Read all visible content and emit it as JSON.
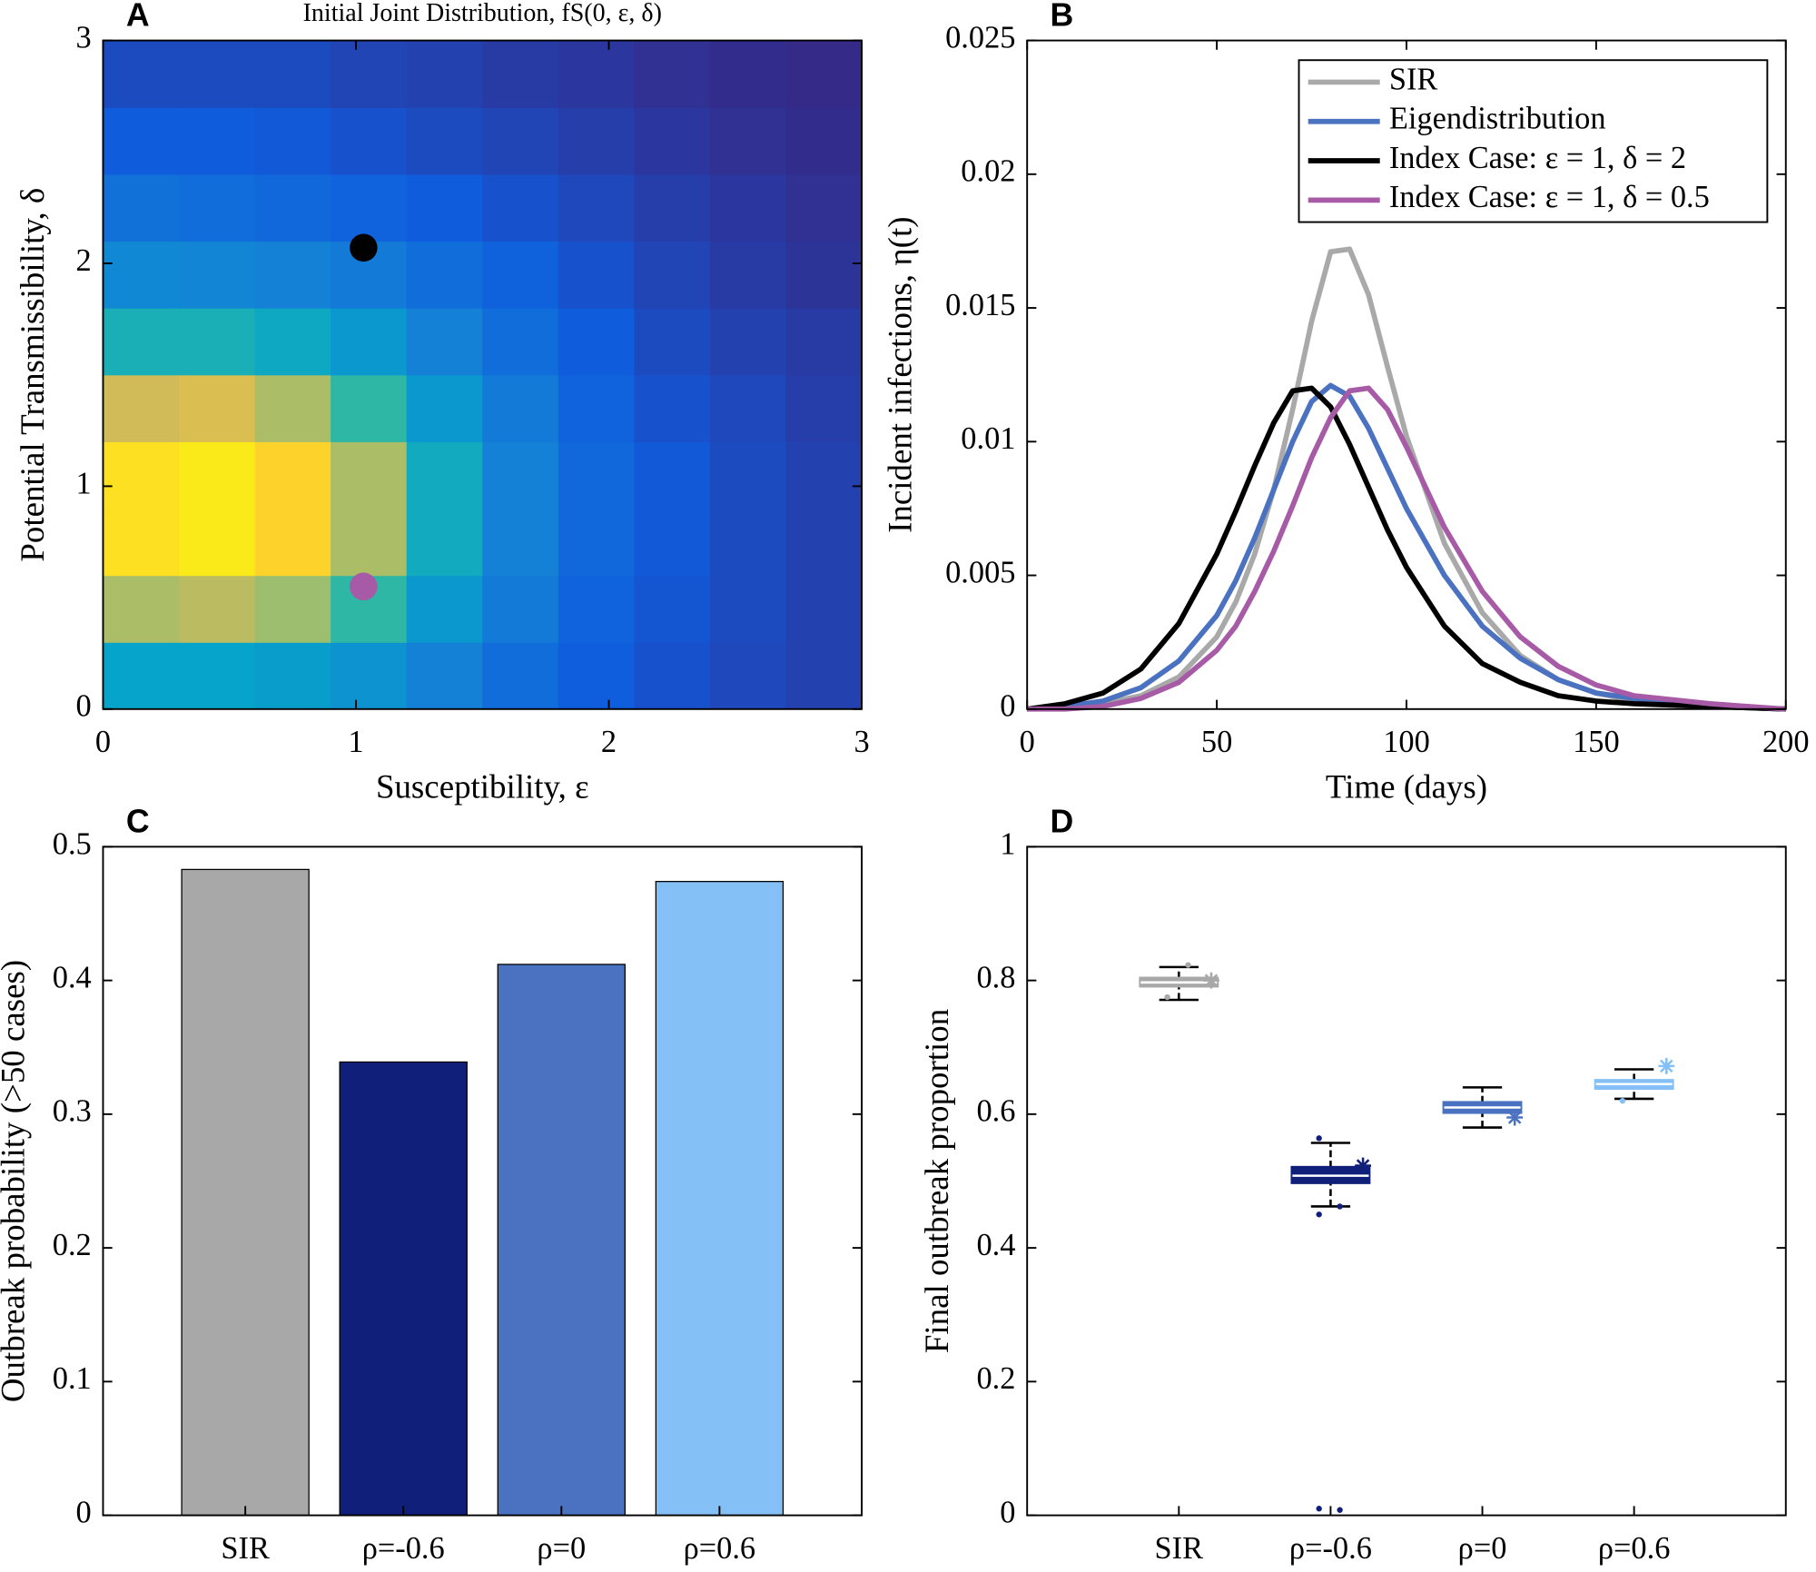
{
  "chart_data": [
    {
      "type": "heatmap",
      "panel_label": "A",
      "title": "Initial Joint Distribution, fS(0, ε, δ)",
      "xlabel": "Susceptibility, ε",
      "ylabel": "Potential Transmissibility, δ",
      "xlim": [
        0,
        3
      ],
      "ylim": [
        0,
        3
      ],
      "xticks": [
        0,
        1,
        2,
        3
      ],
      "yticks": [
        0,
        1,
        2,
        3
      ],
      "x": [
        0.15,
        0.45,
        0.75,
        1.05,
        1.35,
        1.65,
        1.95,
        2.25,
        2.55,
        2.85
      ],
      "y": [
        0.15,
        0.45,
        0.75,
        1.05,
        1.35,
        1.65,
        1.95,
        2.25,
        2.55,
        2.85
      ],
      "z": [
        [
          0.45,
          0.45,
          0.42,
          0.38,
          0.3,
          0.22,
          0.16,
          0.12,
          0.09,
          0.07
        ],
        [
          0.7,
          0.72,
          0.68,
          0.55,
          0.4,
          0.27,
          0.18,
          0.13,
          0.1,
          0.07
        ],
        [
          0.92,
          0.95,
          0.88,
          0.7,
          0.48,
          0.3,
          0.2,
          0.14,
          0.1,
          0.07
        ],
        [
          0.92,
          0.95,
          0.88,
          0.7,
          0.48,
          0.3,
          0.2,
          0.14,
          0.1,
          0.07
        ],
        [
          0.75,
          0.77,
          0.7,
          0.55,
          0.4,
          0.27,
          0.18,
          0.12,
          0.09,
          0.06
        ],
        [
          0.5,
          0.5,
          0.47,
          0.4,
          0.3,
          0.22,
          0.15,
          0.1,
          0.07,
          0.05
        ],
        [
          0.33,
          0.32,
          0.3,
          0.27,
          0.22,
          0.17,
          0.12,
          0.08,
          0.05,
          0.03
        ],
        [
          0.23,
          0.22,
          0.2,
          0.18,
          0.15,
          0.12,
          0.09,
          0.06,
          0.04,
          0.02
        ],
        [
          0.15,
          0.15,
          0.14,
          0.12,
          0.1,
          0.08,
          0.06,
          0.04,
          0.02,
          0.01
        ],
        [
          0.1,
          0.1,
          0.1,
          0.08,
          0.07,
          0.05,
          0.04,
          0.02,
          0.01,
          0
        ]
      ],
      "points": [
        {
          "x": 1.03,
          "y": 2.07,
          "color": "#000000"
        },
        {
          "x": 1.03,
          "y": 0.55,
          "color": "#a75aa5"
        }
      ]
    },
    {
      "type": "line",
      "panel_label": "B",
      "xlabel": "Time (days)",
      "ylabel": "Incident infections, η(t)",
      "xlim": [
        0,
        200
      ],
      "ylim": [
        0,
        0.025
      ],
      "xticks": [
        0,
        50,
        100,
        150,
        200
      ],
      "yticks": [
        0,
        0.005,
        0.01,
        0.015,
        0.02,
        0.025
      ],
      "legend": "northeast",
      "x": [
        0,
        10,
        20,
        30,
        40,
        50,
        55,
        60,
        65,
        70,
        75,
        80,
        85,
        90,
        95,
        100,
        110,
        120,
        130,
        140,
        150,
        160,
        180,
        200
      ],
      "series": [
        {
          "name": "SIR",
          "color": "#a9a9a9",
          "values": [
            0,
            0.0001,
            0.0002,
            0.0005,
            0.0012,
            0.0027,
            0.004,
            0.0058,
            0.0082,
            0.0112,
            0.0145,
            0.0171,
            0.0172,
            0.0155,
            0.0128,
            0.0102,
            0.0062,
            0.0036,
            0.002,
            0.0011,
            0.0006,
            0.0003,
            0.0001,
            0
          ]
        },
        {
          "name": "Eigendistribution",
          "color": "#4a72c0",
          "values": [
            0,
            0.0001,
            0.0003,
            0.0008,
            0.0018,
            0.0035,
            0.0048,
            0.0064,
            0.0082,
            0.01,
            0.0115,
            0.0121,
            0.0117,
            0.0105,
            0.009,
            0.0075,
            0.005,
            0.0031,
            0.0019,
            0.0011,
            0.0006,
            0.0004,
            0.0001,
            0
          ]
        },
        {
          "name": "Index Case: ε = 1, δ = 2",
          "color": "#000000",
          "values": [
            0,
            0.0002,
            0.0006,
            0.0015,
            0.0032,
            0.0058,
            0.0074,
            0.0091,
            0.0107,
            0.0119,
            0.012,
            0.0113,
            0.0099,
            0.0083,
            0.0067,
            0.0053,
            0.0031,
            0.0017,
            0.001,
            0.0005,
            0.0003,
            0.0002,
            0.0001,
            0
          ]
        },
        {
          "name": "Index Case: ε = 1, δ = 0.5",
          "color": "#a75aa5",
          "values": [
            0,
            0,
            0.0001,
            0.0004,
            0.001,
            0.0022,
            0.0031,
            0.0044,
            0.0059,
            0.0076,
            0.0094,
            0.0109,
            0.0119,
            0.012,
            0.0112,
            0.0098,
            0.0068,
            0.0044,
            0.0027,
            0.0016,
            0.0009,
            0.0005,
            0.0002,
            0
          ]
        }
      ]
    },
    {
      "type": "bar",
      "panel_label": "C",
      "ylabel": "Outbreak probability (>50 cases)",
      "ylim": [
        0,
        0.5
      ],
      "yticks": [
        0,
        0.1,
        0.2,
        0.3,
        0.4,
        0.5
      ],
      "categories": [
        "SIR",
        "ρ=-0.6",
        "ρ=0",
        "ρ=0.6"
      ],
      "values": [
        0.483,
        0.339,
        0.412,
        0.474
      ],
      "colors": [
        "#a8a8a8",
        "#10207a",
        "#4a72c0",
        "#84bff5"
      ]
    },
    {
      "type": "box",
      "panel_label": "D",
      "ylabel": "Final outbreak proportion",
      "ylim": [
        0,
        1
      ],
      "yticks": [
        0,
        0.2,
        0.4,
        0.6,
        0.8,
        1
      ],
      "categories": [
        "SIR",
        "ρ=-0.6",
        "ρ=0",
        "ρ=0.6"
      ],
      "boxes": [
        {
          "color": "#a8a8a8",
          "whisker_low": 0.771,
          "q1": 0.792,
          "median": 0.797,
          "q3": 0.803,
          "whisker_high": 0.82,
          "outliers": [
            0.775,
            0.823
          ],
          "marker": 0.8
        },
        {
          "color": "#10207a",
          "whisker_low": 0.462,
          "q1": 0.498,
          "median": 0.508,
          "q3": 0.52,
          "whisker_high": 0.557,
          "outliers": [
            0.45,
            0.462,
            0.564,
            0.008,
            0.01
          ],
          "marker": 0.523
        },
        {
          "color": "#4a72c0",
          "whisker_low": 0.58,
          "q1": 0.603,
          "median": 0.61,
          "q3": 0.617,
          "whisker_high": 0.64,
          "outliers": [],
          "marker": 0.595
        },
        {
          "color": "#84bff5",
          "whisker_low": 0.623,
          "q1": 0.639,
          "median": 0.645,
          "q3": 0.65,
          "whisker_high": 0.667,
          "outliers": [
            0.62
          ],
          "marker": 0.672
        }
      ]
    }
  ]
}
